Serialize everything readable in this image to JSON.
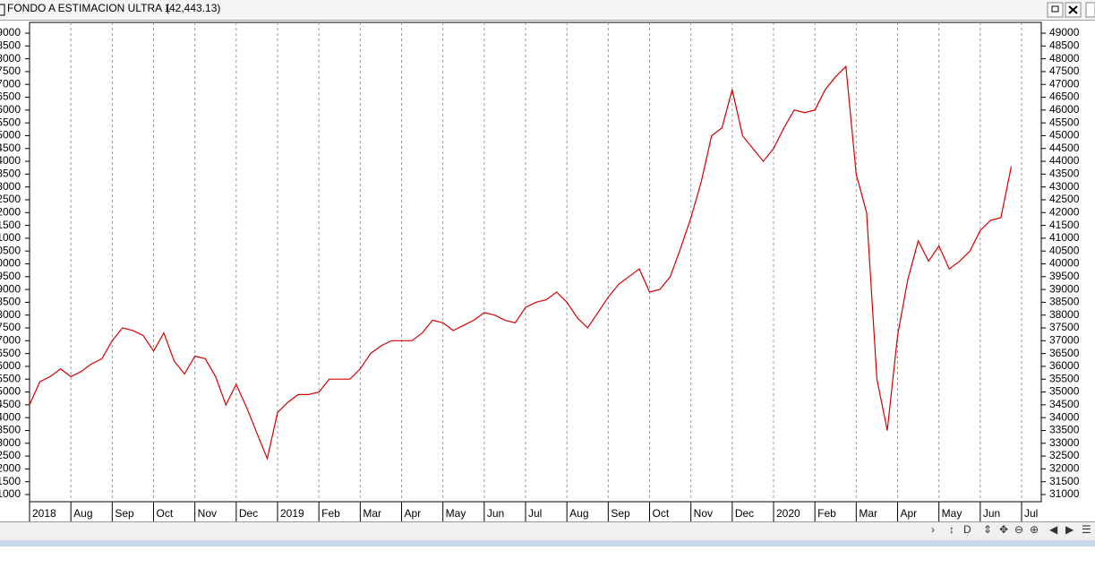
{
  "chart_data": {
    "type": "line",
    "title": "FONDO A ESTIMACION  ULTRA 1",
    "subtitle": "(42,443.13)",
    "categories": [
      "2018",
      null,
      null,
      null,
      "Aug",
      null,
      null,
      null,
      "Sep",
      null,
      null,
      null,
      "Oct",
      null,
      null,
      null,
      "Nov",
      null,
      null,
      null,
      "Dec",
      null,
      null,
      null,
      "2019",
      null,
      null,
      null,
      "Feb",
      null,
      null,
      null,
      "Mar",
      null,
      null,
      null,
      "Apr",
      null,
      null,
      null,
      "May",
      null,
      null,
      null,
      "Jun",
      null,
      null,
      null,
      "Jul",
      null,
      null,
      null,
      "Aug",
      null,
      null,
      null,
      "Sep",
      null,
      null,
      null,
      "Oct",
      null,
      null,
      null,
      "Nov",
      null,
      null,
      null,
      "Dec",
      null,
      null,
      null,
      "2020",
      null,
      null,
      null,
      "Feb",
      null,
      null,
      null,
      "Mar",
      null,
      null,
      null,
      "Apr",
      null,
      null,
      null,
      "May",
      null,
      null,
      null,
      "Jun",
      null,
      null,
      null,
      "Jul"
    ],
    "series": [
      {
        "color": "#d40000",
        "values": [
          34500,
          35400,
          35600,
          35900,
          35600,
          35800,
          36100,
          36300,
          37000,
          37500,
          37400,
          37200,
          36600,
          37300,
          36200,
          35700,
          36400,
          36300,
          35600,
          34500,
          35300,
          34400,
          33400,
          32400,
          34200,
          34600,
          34900,
          34900,
          35000,
          35500,
          35500,
          35500,
          35900,
          36500,
          36800,
          37000,
          37000,
          37000,
          37300,
          37800,
          37700,
          37400,
          37600,
          37800,
          38100,
          38000,
          37800,
          37700,
          38300,
          38500,
          38600,
          38900,
          38500,
          37900,
          37500,
          38100,
          38700,
          39200,
          39500,
          39800,
          38900,
          39000,
          39500,
          40600,
          41800,
          43200,
          45000,
          45300,
          46800,
          45000,
          44500,
          44000,
          44500,
          45300,
          46000,
          45900,
          46000,
          46800,
          47300,
          47700,
          43500,
          42000,
          35500,
          33500,
          37200,
          39400,
          40900,
          40100,
          40700,
          39800,
          40100,
          40500,
          41300,
          41700,
          41800,
          43800,
          null
        ]
      }
    ],
    "ylim": [
      30720,
      49420
    ],
    "yticks": [
      31000,
      31500,
      32000,
      32500,
      33000,
      33500,
      34000,
      34500,
      35000,
      35500,
      36000,
      36500,
      37000,
      37500,
      38000,
      38500,
      39000,
      39500,
      40000,
      40500,
      41000,
      41500,
      42000,
      42500,
      43000,
      43500,
      44000,
      44500,
      45000,
      45500,
      46000,
      46500,
      47000,
      47500,
      48000,
      48500,
      49000
    ],
    "grid": true,
    "subtitle_color": "#e01010"
  }
}
